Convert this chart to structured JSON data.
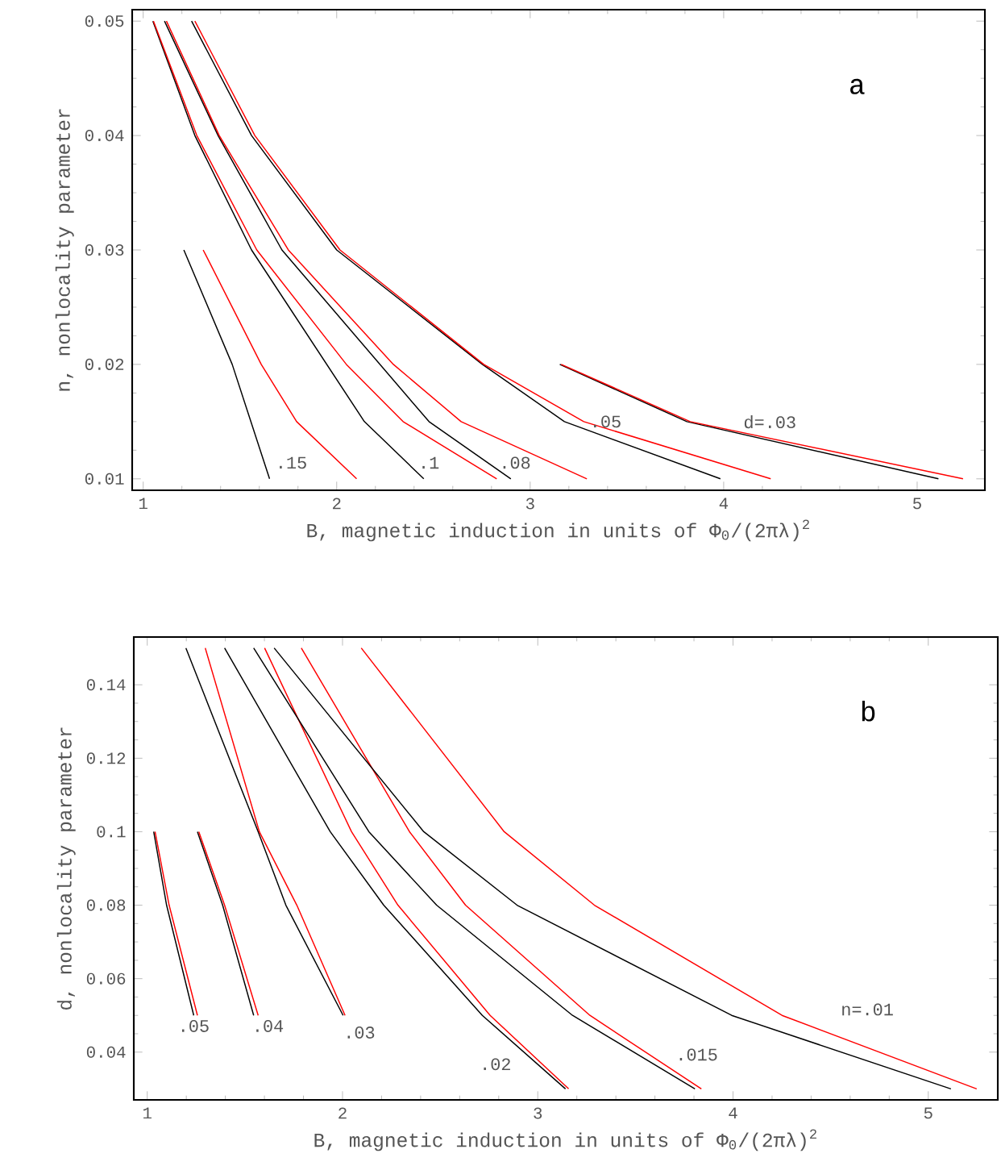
{
  "chart_data": [
    {
      "type": "line",
      "xlabel": "B, magnetic induction in units of Φ$_{0}$/(2πλ)$^{2}$",
      "ylabel": "n, nonlocality parameter",
      "xlim": [
        0.943,
        5.35
      ],
      "ylim": [
        0.009,
        0.051
      ],
      "xticks": [
        1,
        2,
        3,
        4,
        5
      ],
      "yticks": [
        0.01,
        0.02,
        0.03,
        0.04,
        0.05
      ],
      "series": [
        {
          "color": "#000000",
          "x": [
            1.21,
            1.46,
            1.653
          ],
          "values": [
            0.03,
            0.02,
            0.01
          ]
        },
        {
          "color": "#ff0000",
          "x": [
            1.31,
            1.61,
            1.793,
            2.103
          ],
          "values": [
            0.03,
            0.02,
            0.015,
            0.01
          ]
        },
        {
          "color": "#000000",
          "x": [
            1.05,
            1.267,
            1.56,
            2.143,
            2.45
          ],
          "values": [
            0.05,
            0.04,
            0.03,
            0.015,
            0.01
          ]
        },
        {
          "color": "#ff0000",
          "x": [
            1.053,
            1.277,
            1.587,
            2.05,
            2.343,
            2.827
          ],
          "values": [
            0.05,
            0.04,
            0.03,
            0.02,
            0.015,
            0.01
          ]
        },
        {
          "color": "#000000",
          "x": [
            1.11,
            1.387,
            1.717,
            2.477,
            2.9
          ],
          "values": [
            0.05,
            0.04,
            0.03,
            0.015,
            0.01
          ]
        },
        {
          "color": "#ff0000",
          "x": [
            1.12,
            1.393,
            1.75,
            2.293,
            2.643,
            3.293
          ],
          "values": [
            0.05,
            0.04,
            0.03,
            0.02,
            0.015,
            0.01
          ]
        },
        {
          "color": "#000000",
          "x": [
            1.25,
            1.56,
            2.0,
            2.753,
            3.177,
            3.983
          ],
          "values": [
            0.05,
            0.04,
            0.03,
            0.02,
            0.015,
            0.01
          ]
        },
        {
          "color": "#ff0000",
          "x": [
            1.267,
            1.577,
            2.017,
            2.76,
            3.277,
            4.243
          ],
          "values": [
            0.05,
            0.04,
            0.03,
            0.02,
            0.015,
            0.01
          ]
        },
        {
          "color": "#000000",
          "x": [
            3.153,
            3.81,
            5.11
          ],
          "values": [
            0.02,
            0.015,
            0.01
          ]
        },
        {
          "color": "#ff0000",
          "x": [
            3.16,
            3.827,
            5.237
          ],
          "values": [
            0.02,
            0.015,
            0.01
          ]
        }
      ],
      "annotations": [
        {
          "text": ".15",
          "x": 1.626,
          "y": 0.0114
        },
        {
          "text": ".1",
          "x": 2.364,
          "y": 0.0114
        },
        {
          "text": ".08",
          "x": 2.782,
          "y": 0.0114
        },
        {
          "text": ".05",
          "x": 3.39,
          "y": 0.015
        },
        {
          "text": "d=.03",
          "x": 4.1,
          "y": 0.014
        },
        "a"
      ]
    },
    {
      "type": "line",
      "xlabel": "B, magnetic induction in units of Φ$_{0}$/(2πλ)$^{2}$",
      "ylabel": "d, nonlocality parameter",
      "xlim": [
        0.931,
        5.356
      ],
      "ylim": [
        0.027,
        0.153
      ],
      "xticks": [
        1,
        2,
        3,
        4,
        5
      ],
      "yticks": [
        0.04,
        0.06,
        0.08,
        0.1,
        0.12,
        0.14
      ],
      "series": [
        {
          "color": "#000000",
          "x": [
            1.033,
            1.099,
            1.238
          ],
          "values": [
            0.1,
            0.08,
            0.05
          ]
        },
        {
          "color": "#ff0000",
          "x": [
            1.04,
            1.112,
            1.257
          ],
          "values": [
            0.1,
            0.08,
            0.05
          ]
        },
        {
          "color": "#000000",
          "x": [
            1.257,
            1.386,
            1.545
          ],
          "values": [
            0.1,
            0.08,
            0.05
          ]
        },
        {
          "color": "#ff0000",
          "x": [
            1.264,
            1.396,
            1.568
          ],
          "values": [
            0.1,
            0.08,
            0.05
          ]
        },
        {
          "color": "#000000",
          "x": [
            1.198,
            1.568,
            1.71,
            2.003
          ],
          "values": [
            0.15,
            0.1,
            0.08,
            0.05
          ]
        },
        {
          "color": "#ff0000",
          "x": [
            1.297,
            1.574,
            1.766,
            2.013
          ],
          "values": [
            0.15,
            0.1,
            0.08,
            0.05
          ]
        },
        {
          "color": "#000000",
          "x": [
            1.396,
            1.937,
            2.211,
            2.716,
            3.142
          ],
          "values": [
            0.15,
            0.1,
            0.08,
            0.05,
            0.03
          ]
        },
        {
          "color": "#ff0000",
          "x": [
            1.601,
            2.046,
            2.284,
            2.756,
            3.158
          ],
          "values": [
            0.15,
            0.1,
            0.08,
            0.05,
            0.03
          ]
        },
        {
          "color": "#000000",
          "x": [
            1.545,
            2.135,
            2.482,
            3.178,
            3.805
          ],
          "values": [
            0.15,
            0.1,
            0.08,
            0.05,
            0.03
          ]
        },
        {
          "color": "#ff0000",
          "x": [
            1.789,
            2.343,
            2.63,
            3.267,
            3.838
          ],
          "values": [
            0.15,
            0.1,
            0.08,
            0.05,
            0.03
          ]
        },
        {
          "color": "#000000",
          "x": [
            1.65,
            2.416,
            2.894,
            3.993,
            5.116
          ],
          "values": [
            0.15,
            0.1,
            0.08,
            0.05,
            0.03
          ]
        },
        {
          "color": "#ff0000",
          "x": [
            2.096,
            2.828,
            3.29,
            4.251,
            5.248
          ],
          "values": [
            0.15,
            0.1,
            0.08,
            0.05,
            0.03
          ]
        }
      ],
      "annotations": [
        {
          "text": ".05",
          "x": 1.238,
          "y": 0.05
        },
        {
          "text": ".04",
          "x": 1.568,
          "y": 0.05
        },
        {
          "text": ".03",
          "x": 2.003,
          "y": 0.05
        },
        {
          "text": ".02",
          "x": 2.999,
          "y": 0.0367
        },
        {
          "text": ".015",
          "x": 3.572,
          "y": 0.0393
        },
        {
          "text": "n=.01",
          "x": 4.55,
          "y": 0.044
        },
        "b"
      ]
    }
  ]
}
